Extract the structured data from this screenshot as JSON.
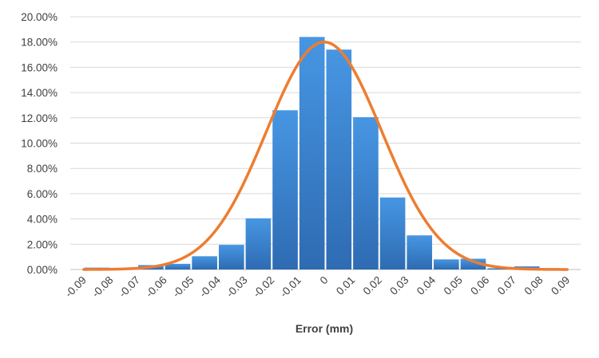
{
  "chart_data": {
    "type": "bar",
    "xlabel": "Error (mm)",
    "x_ticks": [
      "-0.09",
      "-0.08",
      "-0.07",
      "-0.06",
      "-0.05",
      "-0.04",
      "-0.03",
      "-0.02",
      "-0.01",
      "0",
      "0.01",
      "0.02",
      "0.03",
      "0.04",
      "0.05",
      "0.06",
      "0.07",
      "0.08",
      "0.09"
    ],
    "y_ticks": [
      "0.00%",
      "2.00%",
      "4.00%",
      "6.00%",
      "8.00%",
      "10.00%",
      "12.00%",
      "14.00%",
      "16.00%",
      "18.00%",
      "20.00%"
    ],
    "ylim": [
      0,
      20
    ],
    "grid": true,
    "colors": {
      "bar": "#3a7fd0",
      "curve": "#ed7d31",
      "grid": "#d9d9d9"
    },
    "bars": [
      {
        "x": -0.085,
        "value": 0.15
      },
      {
        "x": -0.075,
        "value": 0.05
      },
      {
        "x": -0.065,
        "value": 0.35
      },
      {
        "x": -0.055,
        "value": 0.45
      },
      {
        "x": -0.045,
        "value": 1.05
      },
      {
        "x": -0.035,
        "value": 1.95
      },
      {
        "x": -0.025,
        "value": 4.05
      },
      {
        "x": -0.015,
        "value": 12.6
      },
      {
        "x": -0.005,
        "value": 18.4
      },
      {
        "x": 0.005,
        "value": 17.4
      },
      {
        "x": 0.015,
        "value": 12.05
      },
      {
        "x": 0.025,
        "value": 5.7
      },
      {
        "x": 0.035,
        "value": 2.7
      },
      {
        "x": 0.045,
        "value": 0.8
      },
      {
        "x": 0.055,
        "value": 0.85
      },
      {
        "x": 0.065,
        "value": 0.1
      },
      {
        "x": 0.075,
        "value": 0.25
      },
      {
        "x": 0.085,
        "value": 0.05
      }
    ],
    "normal_curve": {
      "mean": -0.0005,
      "sd": 0.0215,
      "peak": 18.0,
      "x_range": [
        -0.09,
        0.09
      ]
    }
  }
}
